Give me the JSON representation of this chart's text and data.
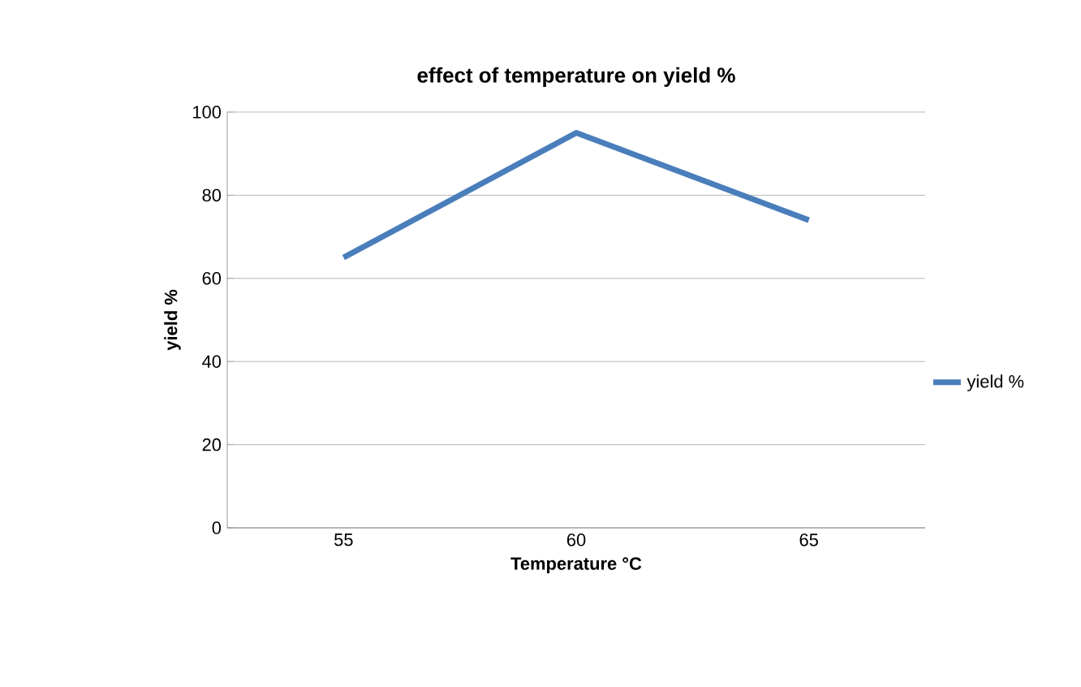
{
  "chart_data": {
    "type": "line",
    "title": "**effect of temperature on yield %**",
    "xlabel": "**Temperature °C**",
    "ylabel": "**yield %**",
    "categories": [
      "55",
      "60",
      "65"
    ],
    "series": [
      {
        "name": "yield %",
        "color": "#4a7ebb",
        "values": [
          65,
          95,
          74
        ]
      }
    ],
    "ylim": [
      0,
      100
    ],
    "yticks": [
      0,
      20,
      40,
      60,
      80,
      100
    ],
    "grid": "y",
    "legend": "right",
    "marker": "none",
    "line_style": "solid"
  }
}
